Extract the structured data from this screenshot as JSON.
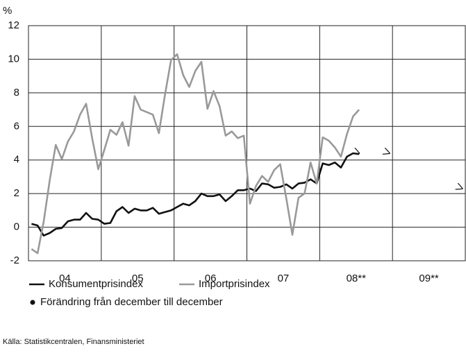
{
  "chart_data": {
    "type": "line",
    "y_label": "%",
    "source": "Källa: Statistikcentralen, Finansministeriet",
    "categories": [
      "04",
      null,
      null,
      null,
      null,
      null,
      null,
      null,
      null,
      null,
      null,
      null,
      "05",
      null,
      null,
      null,
      null,
      null,
      null,
      null,
      null,
      null,
      null,
      null,
      "06",
      null,
      null,
      null,
      null,
      null,
      null,
      null,
      null,
      null,
      null,
      null,
      "07",
      null,
      null,
      null,
      null,
      null,
      null,
      null,
      null,
      null,
      null,
      null,
      "08**",
      null,
      null,
      null,
      null,
      null,
      null,
      null,
      null,
      null,
      null,
      null,
      "09**",
      null,
      null,
      null,
      null,
      null,
      null,
      null,
      null,
      null,
      null,
      null
    ],
    "series": [
      {
        "name": "Konsumentprisindex",
        "color": "#111111",
        "values": [
          0.2,
          0.1,
          -0.5,
          -0.35,
          -0.1,
          -0.05,
          0.35,
          0.45,
          0.45,
          0.85,
          0.5,
          0.45,
          0.2,
          0.25,
          0.95,
          1.2,
          0.85,
          1.1,
          1.0,
          1.0,
          1.15,
          0.8,
          0.9,
          1.0,
          1.2,
          1.4,
          1.3,
          1.55,
          2.0,
          1.85,
          1.85,
          1.95,
          1.55,
          1.85,
          2.2,
          2.2,
          2.3,
          2.15,
          2.6,
          2.55,
          2.35,
          2.4,
          2.55,
          2.3,
          2.6,
          2.65,
          2.85,
          2.6,
          3.8,
          3.7,
          3.85,
          3.55,
          4.2,
          4.4,
          4.35,
          null,
          null,
          null,
          null,
          null,
          null,
          null,
          null,
          null,
          null,
          null,
          null,
          null,
          null,
          null,
          null,
          null
        ]
      },
      {
        "name": "Importprisindex",
        "color": "#999999",
        "values": [
          -1.3,
          -1.55,
          0.3,
          2.8,
          4.9,
          4.05,
          5.1,
          5.7,
          6.7,
          7.35,
          5.3,
          3.45,
          4.6,
          5.8,
          5.5,
          6.25,
          4.85,
          7.8,
          7.0,
          6.85,
          6.7,
          5.6,
          7.9,
          9.95,
          10.3,
          9.05,
          8.35,
          9.3,
          9.85,
          7.05,
          8.1,
          7.2,
          5.45,
          5.7,
          5.3,
          5.45,
          1.4,
          2.45,
          3.05,
          2.7,
          3.4,
          3.75,
          1.7,
          -0.45,
          1.75,
          2.0,
          3.85,
          2.6,
          5.35,
          5.15,
          4.75,
          4.2,
          5.55,
          6.6,
          7.0,
          null,
          null,
          null,
          null,
          null,
          null,
          null,
          null,
          null,
          null,
          null,
          null,
          null,
          null,
          null,
          null,
          null
        ]
      },
      {
        "name": "Förändring från december till december",
        "color": "#111111",
        "dash": true,
        "values": [
          null,
          null,
          null,
          null,
          null,
          null,
          null,
          null,
          null,
          null,
          null,
          null,
          null,
          null,
          null,
          null,
          null,
          null,
          null,
          null,
          null,
          null,
          null,
          null,
          null,
          null,
          null,
          null,
          null,
          null,
          null,
          null,
          null,
          null,
          null,
          null,
          null,
          null,
          null,
          null,
          null,
          null,
          null,
          null,
          null,
          null,
          null,
          null,
          null,
          null,
          null,
          null,
          null,
          null,
          4.4,
          null,
          null,
          null,
          null,
          4.4,
          null,
          null,
          null,
          null,
          null,
          null,
          null,
          null,
          null,
          null,
          null,
          2.3
        ]
      }
    ],
    "ylim": [
      -2,
      12
    ],
    "yticks": [
      -2,
      0,
      2,
      4,
      6,
      8,
      10,
      12
    ],
    "grid": true
  }
}
